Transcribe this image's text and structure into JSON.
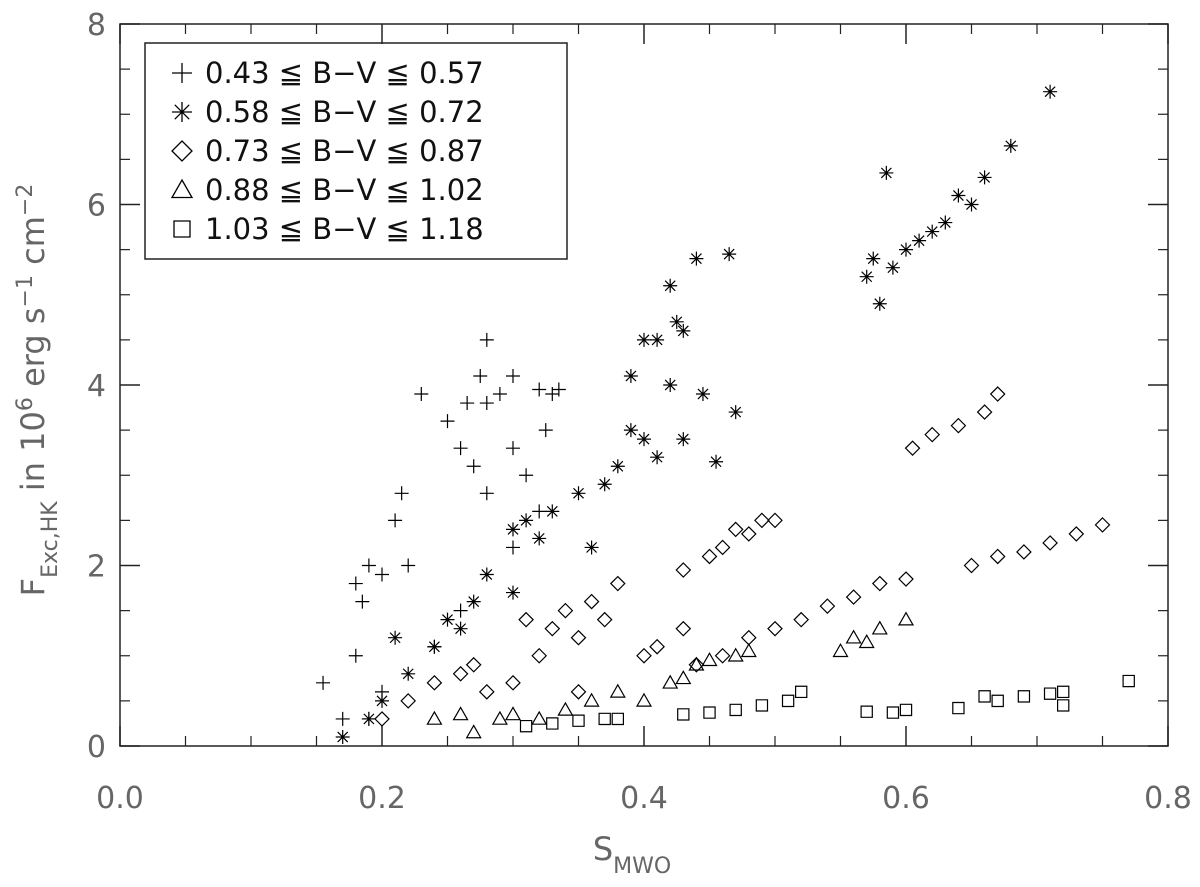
{
  "chart_data": {
    "type": "scatter",
    "xlabel": [
      {
        "text": "S",
        "script": "normal"
      },
      {
        "text": "MWO",
        "script": "sub"
      }
    ],
    "ylabel": [
      {
        "text": "F",
        "script": "normal"
      },
      {
        "text": "Exc,HK",
        "script": "sub"
      },
      {
        "text": " in 10",
        "script": "normal"
      },
      {
        "text": "6",
        "script": "super"
      },
      {
        "text": " erg s",
        "script": "normal"
      },
      {
        "text": "−1",
        "script": "super"
      },
      {
        "text": " cm",
        "script": "normal"
      },
      {
        "text": "−2",
        "script": "super"
      }
    ],
    "xlim": [
      0,
      0.8
    ],
    "ylim": [
      0,
      8
    ],
    "xticks": [
      {
        "value": 0,
        "label": "0.0"
      },
      0.2,
      0.4,
      0.6,
      0.8
    ],
    "yticks": [
      0,
      2,
      4,
      6,
      8
    ],
    "xminorticks": [
      0.05,
      0.1,
      0.15,
      0.25,
      0.3,
      0.35,
      0.45,
      0.5,
      0.55,
      0.65,
      0.7,
      0.75
    ],
    "yminorticks": [
      0.5,
      1,
      1.5,
      2.5,
      3,
      3.5,
      4.5,
      5,
      5.5,
      6.5,
      7,
      7.5
    ],
    "legend": "upper left",
    "series": [
      {
        "name": "0.43 ≦ B−V ≦ 0.57",
        "marker": "plus",
        "color": "#000000",
        "x": [
          0.155,
          0.17,
          0.18,
          0.18,
          0.185,
          0.19,
          0.2,
          0.21,
          0.215,
          0.22,
          0.23,
          0.25,
          0.26,
          0.265,
          0.27,
          0.275,
          0.28,
          0.28,
          0.29,
          0.3,
          0.3,
          0.31,
          0.32,
          0.325,
          0.33,
          0.335,
          0.32,
          0.3,
          0.28,
          0.26,
          0.24,
          0.2,
          0.19
        ],
        "values": [
          0.7,
          0.3,
          1.0,
          1.8,
          1.6,
          2.0,
          1.9,
          2.5,
          2.8,
          2.0,
          3.9,
          3.6,
          3.3,
          3.8,
          3.1,
          4.1,
          4.5,
          3.8,
          3.9,
          4.1,
          3.3,
          3.0,
          3.95,
          3.5,
          3.9,
          3.95,
          2.6,
          2.2,
          2.8,
          1.5,
          1.1,
          0.6,
          0.3
        ]
      },
      {
        "name": "0.58 ≦ B−V ≦ 0.72",
        "marker": "asterisk",
        "color": "#000000",
        "x": [
          0.17,
          0.19,
          0.2,
          0.21,
          0.22,
          0.24,
          0.25,
          0.27,
          0.28,
          0.3,
          0.31,
          0.32,
          0.33,
          0.35,
          0.37,
          0.38,
          0.39,
          0.4,
          0.39,
          0.4,
          0.41,
          0.42,
          0.425,
          0.43,
          0.42,
          0.44,
          0.465,
          0.43,
          0.445,
          0.455,
          0.47,
          0.41,
          0.36,
          0.3,
          0.26,
          0.57,
          0.575,
          0.58,
          0.59,
          0.6,
          0.61,
          0.62,
          0.63,
          0.64,
          0.65,
          0.66,
          0.585,
          0.68,
          0.71
        ],
        "values": [
          0.1,
          0.3,
          0.5,
          1.2,
          0.8,
          1.1,
          1.4,
          1.6,
          1.9,
          2.4,
          2.5,
          2.3,
          2.6,
          2.8,
          2.9,
          3.1,
          3.5,
          3.4,
          4.1,
          4.5,
          4.5,
          4.0,
          4.7,
          4.6,
          5.1,
          5.4,
          5.45,
          3.4,
          3.9,
          3.15,
          3.7,
          3.2,
          2.2,
          1.7,
          1.3,
          5.2,
          5.4,
          4.9,
          5.3,
          5.5,
          5.6,
          5.7,
          5.8,
          6.1,
          6.0,
          6.3,
          6.35,
          6.65,
          7.25
        ]
      },
      {
        "name": "0.73 ≦ B−V ≦ 0.87",
        "marker": "diamond",
        "color": "#000000",
        "x": [
          0.2,
          0.22,
          0.24,
          0.26,
          0.27,
          0.28,
          0.3,
          0.31,
          0.32,
          0.33,
          0.34,
          0.35,
          0.36,
          0.37,
          0.38,
          0.35,
          0.4,
          0.41,
          0.43,
          0.43,
          0.45,
          0.46,
          0.47,
          0.48,
          0.49,
          0.5,
          0.44,
          0.46,
          0.48,
          0.5,
          0.52,
          0.54,
          0.56,
          0.58,
          0.6,
          0.605,
          0.62,
          0.64,
          0.66,
          0.67,
          0.65,
          0.67,
          0.69,
          0.71,
          0.73,
          0.75
        ],
        "values": [
          0.3,
          0.5,
          0.7,
          0.8,
          0.9,
          0.6,
          0.7,
          1.4,
          1.0,
          1.3,
          1.5,
          1.2,
          1.6,
          1.4,
          1.8,
          0.6,
          1.0,
          1.1,
          1.3,
          1.95,
          2.1,
          2.2,
          2.4,
          2.35,
          2.5,
          2.5,
          0.9,
          1.0,
          1.2,
          1.3,
          1.4,
          1.55,
          1.65,
          1.8,
          1.85,
          3.3,
          3.45,
          3.55,
          3.7,
          3.9,
          2.0,
          2.1,
          2.15,
          2.25,
          2.35,
          2.45
        ]
      },
      {
        "name": "0.88 ≦ B−V ≦ 1.02",
        "marker": "triangle",
        "color": "#000000",
        "x": [
          0.24,
          0.26,
          0.27,
          0.29,
          0.3,
          0.32,
          0.34,
          0.36,
          0.38,
          0.4,
          0.42,
          0.43,
          0.44,
          0.45,
          0.47,
          0.48,
          0.55,
          0.56,
          0.57,
          0.58,
          0.6
        ],
        "values": [
          0.3,
          0.35,
          0.15,
          0.3,
          0.35,
          0.3,
          0.4,
          0.5,
          0.6,
          0.5,
          0.7,
          0.75,
          0.9,
          0.95,
          1.0,
          1.05,
          1.05,
          1.2,
          1.15,
          1.3,
          1.4
        ]
      },
      {
        "name": "1.03 ≦ B−V ≦ 1.18",
        "marker": "square",
        "color": "#000000",
        "x": [
          0.31,
          0.33,
          0.35,
          0.37,
          0.38,
          0.43,
          0.45,
          0.47,
          0.49,
          0.51,
          0.52,
          0.57,
          0.59,
          0.6,
          0.64,
          0.66,
          0.67,
          0.69,
          0.71,
          0.72,
          0.72,
          0.77
        ],
        "values": [
          0.22,
          0.25,
          0.28,
          0.3,
          0.3,
          0.35,
          0.37,
          0.4,
          0.45,
          0.5,
          0.6,
          0.38,
          0.37,
          0.4,
          0.42,
          0.55,
          0.5,
          0.55,
          0.58,
          0.6,
          0.45,
          0.72
        ]
      }
    ]
  }
}
